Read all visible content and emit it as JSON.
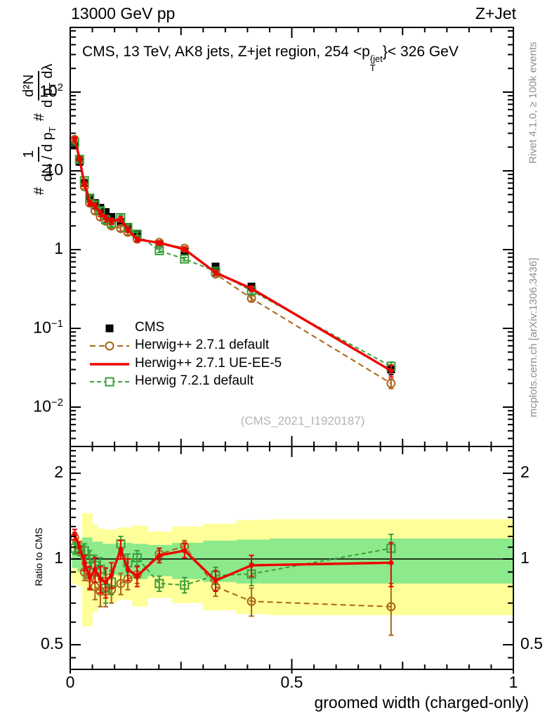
{
  "header": {
    "left": "13000 GeV pp",
    "right": "Z+Jet"
  },
  "panel_title": {
    "part1": "CMS, 13 TeV, AK8 jets, Z+jet region, 254 <",
    "p": "p",
    "sup": "{jet",
    "sub": "T",
    "part2": "}< 326 GeV"
  },
  "ylabel": {
    "hash1": "#",
    "frac1_num": "1",
    "frac1_den": "dN / d p",
    "sub_T": "T",
    "hash2": "#",
    "frac2_num": "d²N",
    "frac2_den_a": "d p",
    "sub_T2": "T",
    "frac2_den_b": " dλ"
  },
  "ratio_ylabel": "Ratio to CMS",
  "xlabel": "groomed width (charged-only)",
  "watermark": "(CMS_2021_I1920187)",
  "side_text_top": "Rivet 4.1.0, ≥ 100k events",
  "side_text_bottom": "mcplots.cern.ch [arXiv:1306.3436]",
  "colors": {
    "cms": "#000000",
    "herwigpp_default": "#aa6418",
    "herwigpp_ueee5": "#ee0000",
    "herwig7_default": "#3b9e3b",
    "band_outer": "#ffff99",
    "band_inner": "#8ce98c",
    "frame": "#000000",
    "gray_text": "#8e8e8e",
    "watermark_gray": "#b5b5b5"
  },
  "legend": {
    "items": [
      {
        "label": "CMS",
        "marker": "square-filled",
        "line": "none",
        "color": "#000000"
      },
      {
        "label": "Herwig++ 2.7.1 default",
        "marker": "circle-open",
        "line": "dashed",
        "color": "#aa6418"
      },
      {
        "label": "Herwig++ 2.7.1 UE-EE-5",
        "marker": "none",
        "line": "solid",
        "color": "#ee0000"
      },
      {
        "label": "Herwig 7.2.1 default",
        "marker": "square-open",
        "line": "dashed",
        "color": "#3b9e3b"
      }
    ]
  },
  "axes": {
    "main_y_ticks": [
      {
        "value": 100,
        "base": "10",
        "exp": "2"
      },
      {
        "value": 10,
        "base": "10",
        "exp": ""
      },
      {
        "value": 1,
        "base": "1",
        "exp": ""
      },
      {
        "value": 0.1,
        "base": "10",
        "exp": "−1"
      },
      {
        "value": 0.01,
        "base": "10",
        "exp": "−2"
      }
    ],
    "ratio_y_ticks": [
      {
        "value": 2,
        "label": "2"
      },
      {
        "value": 1,
        "label": "1"
      },
      {
        "value": 0.5,
        "label": "0.5"
      }
    ],
    "x_ticks": [
      {
        "value": 0,
        "label": "0"
      },
      {
        "value": 0.5,
        "label": "0.5"
      },
      {
        "value": 1,
        "label": "1"
      }
    ]
  },
  "chart_data": [
    {
      "id": "main",
      "type": "line",
      "title": "CMS, 13 TeV, AK8 jets, Z+jet region, 254 < pT{jet} < 326 GeV",
      "xlabel": "groomed width (charged-only)",
      "ylabel": "# 1/(dN/dpT) # d²N/(dpT dλ)",
      "yscale": "log",
      "xlim": [
        0,
        1
      ],
      "ylim": [
        0.0032,
        660
      ],
      "x": [
        0.01,
        0.021,
        0.032,
        0.044,
        0.056,
        0.068,
        0.08,
        0.093,
        0.114,
        0.13,
        0.151,
        0.201,
        0.258,
        0.328,
        0.409,
        0.724
      ],
      "series": [
        {
          "name": "CMS",
          "color": "#000000",
          "marker": "square-filled",
          "line": "none",
          "values": [
            21,
            13,
            7.0,
            4.5,
            3.9,
            3.4,
            3.0,
            2.6,
            2.25,
            1.95,
            1.55,
            1.18,
            0.94,
            0.61,
            0.34,
            0.03
          ],
          "rel_err": [
            0.04,
            0.04,
            0.05,
            0.06,
            0.06,
            0.07,
            0.07,
            0.07,
            0.06,
            0.06,
            0.06,
            0.05,
            0.06,
            0.07,
            0.08,
            0.14
          ]
        },
        {
          "name": "Herwig++ 2.7.1 default",
          "color": "#aa6418",
          "marker": "circle-open",
          "line": "dashed",
          "values": [
            25,
            14,
            6.3,
            3.9,
            3.1,
            2.6,
            2.3,
            2.0,
            1.85,
            1.66,
            1.36,
            1.23,
            1.04,
            0.49,
            0.24,
            0.02
          ],
          "rel_err": [
            0.05,
            0.05,
            0.06,
            0.07,
            0.08,
            0.09,
            0.09,
            0.08,
            0.07,
            0.07,
            0.06,
            0.05,
            0.05,
            0.06,
            0.08,
            0.14
          ]
        },
        {
          "name": "Herwig 7.2.1 default",
          "color": "#3b9e3b",
          "marker": "square-open",
          "line": "dashed",
          "values": [
            22.9,
            14,
            7.5,
            4.5,
            3.7,
            3.1,
            2.4,
            2.15,
            2.55,
            1.9,
            1.57,
            0.97,
            0.76,
            0.53,
            0.3,
            0.033
          ],
          "rel_err": [
            0.05,
            0.05,
            0.06,
            0.07,
            0.08,
            0.09,
            0.09,
            0.08,
            0.07,
            0.07,
            0.06,
            0.05,
            0.05,
            0.06,
            0.08,
            0.13
          ]
        },
        {
          "name": "Herwig++ 2.7.1 UE-EE-5",
          "color": "#ee0000",
          "marker": "dot",
          "line": "solid",
          "values": [
            25.6,
            14.3,
            6.8,
            3.9,
            3.6,
            2.9,
            2.5,
            2.3,
            2.43,
            1.8,
            1.35,
            1.22,
            1.01,
            0.51,
            0.32,
            0.029
          ],
          "rel_err": [
            0.05,
            0.05,
            0.06,
            0.08,
            0.09,
            0.09,
            0.1,
            0.09,
            0.08,
            0.08,
            0.07,
            0.06,
            0.06,
            0.07,
            0.08,
            0.17
          ]
        }
      ]
    },
    {
      "id": "ratio",
      "type": "line",
      "ylabel": "Ratio to CMS",
      "yscale": "log",
      "xlim": [
        0,
        1
      ],
      "ylim": [
        0.41,
        2.48
      ],
      "x": [
        0.01,
        0.021,
        0.032,
        0.044,
        0.056,
        0.068,
        0.08,
        0.093,
        0.114,
        0.13,
        0.151,
        0.201,
        0.258,
        0.328,
        0.409,
        0.724
      ],
      "series": [
        {
          "name": "Herwig++ 2.7.1 default",
          "color": "#aa6418",
          "marker": "circle-open",
          "line": "dashed",
          "values": [
            1.19,
            1.08,
            0.9,
            0.86,
            0.8,
            0.77,
            0.77,
            0.78,
            0.82,
            0.85,
            0.88,
            1.04,
            1.11,
            0.8,
            0.71,
            0.68
          ],
          "err": [
            0.05,
            0.05,
            0.06,
            0.07,
            0.08,
            0.09,
            0.09,
            0.08,
            0.07,
            0.07,
            0.06,
            0.05,
            0.05,
            0.06,
            0.08,
            0.14
          ]
        },
        {
          "name": "Herwig 7.2.1 default",
          "color": "#3b9e3b",
          "marker": "square-open",
          "line": "dashed",
          "values": [
            1.09,
            1.08,
            1.07,
            1.0,
            0.95,
            0.92,
            0.79,
            0.83,
            1.13,
            0.97,
            1.01,
            0.82,
            0.81,
            0.875,
            0.886,
            1.09
          ],
          "err": [
            0.05,
            0.05,
            0.06,
            0.07,
            0.08,
            0.09,
            0.09,
            0.08,
            0.07,
            0.07,
            0.06,
            0.05,
            0.05,
            0.06,
            0.08,
            0.13
          ]
        },
        {
          "name": "Herwig++ 2.7.1 UE-EE-5",
          "color": "#ee0000",
          "marker": "dot",
          "line": "solid",
          "values": [
            1.22,
            1.1,
            0.97,
            0.86,
            0.92,
            0.85,
            0.83,
            0.88,
            1.08,
            0.92,
            0.87,
            1.03,
            1.07,
            0.84,
            0.95,
            0.97
          ],
          "err": [
            0.05,
            0.05,
            0.06,
            0.08,
            0.09,
            0.09,
            0.1,
            0.09,
            0.08,
            0.08,
            0.07,
            0.06,
            0.06,
            0.07,
            0.08,
            0.17
          ]
        }
      ],
      "bands": {
        "outer_color": "#ffff99",
        "inner_color": "#8ce98c",
        "outer": [
          [
            0.004,
            0.016,
            0.82,
            1.16
          ],
          [
            0.016,
            0.027,
            0.8,
            1.18
          ],
          [
            0.027,
            0.05,
            0.58,
            1.45
          ],
          [
            0.05,
            0.062,
            0.65,
            1.32
          ],
          [
            0.062,
            0.074,
            0.68,
            1.28
          ],
          [
            0.074,
            0.105,
            0.7,
            1.27
          ],
          [
            0.105,
            0.14,
            0.72,
            1.29
          ],
          [
            0.14,
            0.175,
            0.68,
            1.31
          ],
          [
            0.175,
            0.23,
            0.73,
            1.25
          ],
          [
            0.23,
            0.3,
            0.7,
            1.3
          ],
          [
            0.3,
            0.375,
            0.66,
            1.33
          ],
          [
            0.375,
            0.45,
            0.64,
            1.37
          ],
          [
            0.45,
            1.0,
            0.635,
            1.38
          ]
        ],
        "inner": [
          [
            0.004,
            0.016,
            0.93,
            1.07
          ],
          [
            0.016,
            0.027,
            0.9,
            1.1
          ],
          [
            0.027,
            0.05,
            0.85,
            1.19
          ],
          [
            0.05,
            0.074,
            0.87,
            1.15
          ],
          [
            0.074,
            0.105,
            0.88,
            1.13
          ],
          [
            0.105,
            0.14,
            0.87,
            1.14
          ],
          [
            0.14,
            0.175,
            0.85,
            1.13
          ],
          [
            0.175,
            0.23,
            0.87,
            1.12
          ],
          [
            0.23,
            0.3,
            0.85,
            1.14
          ],
          [
            0.3,
            0.375,
            0.83,
            1.16
          ],
          [
            0.375,
            0.45,
            0.82,
            1.17
          ],
          [
            0.45,
            1.0,
            0.82,
            1.18
          ]
        ]
      }
    }
  ]
}
